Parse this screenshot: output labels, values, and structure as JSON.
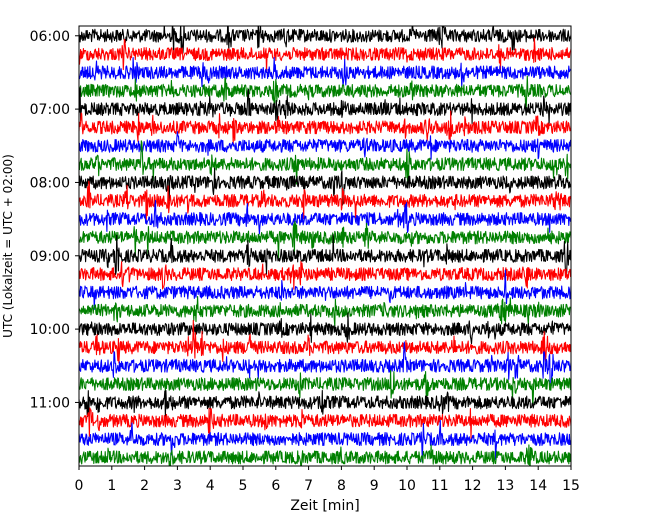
{
  "chart_data": {
    "type": "line",
    "title": "",
    "xlabel": "Zeit  [min]",
    "ylabel": "UTC (Lokalzeit = UTC + 02:00)",
    "xlim": [
      0,
      15
    ],
    "xticks": [
      0,
      1,
      2,
      3,
      4,
      5,
      6,
      7,
      8,
      9,
      10,
      11,
      12,
      13,
      14,
      15
    ],
    "xtick_labels": [
      "0",
      "1",
      "2",
      "3",
      "4",
      "5",
      "6",
      "7",
      "8",
      "9",
      "10",
      "11",
      "12",
      "13",
      "14",
      "15"
    ],
    "ylim": [
      "05:52",
      "11:52"
    ],
    "yticks": [
      "06:00",
      "07:00",
      "08:00",
      "09:00",
      "10:00",
      "11:00"
    ],
    "trace_interval_minutes": 15,
    "trace_count": 24,
    "trace_start_times": [
      "06:00",
      "06:15",
      "06:30",
      "06:45",
      "07:00",
      "07:15",
      "07:30",
      "07:45",
      "08:00",
      "08:15",
      "08:30",
      "08:45",
      "09:00",
      "09:15",
      "09:30",
      "09:45",
      "10:00",
      "10:15",
      "10:30",
      "10:45",
      "11:00",
      "11:15",
      "11:30",
      "11:45"
    ],
    "color_cycle": [
      "#000000",
      "#ff0000",
      "#0000ff",
      "#008000"
    ],
    "grid": false,
    "legend": "none"
  }
}
